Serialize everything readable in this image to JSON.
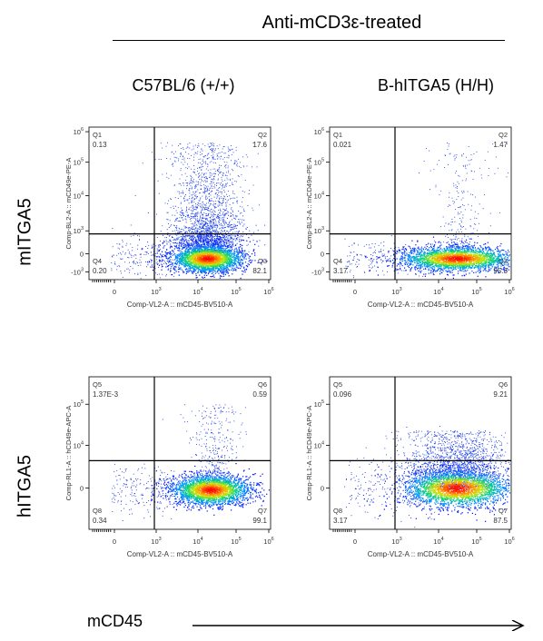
{
  "header": {
    "title": "Anti-mCD3ε-treated"
  },
  "columns": [
    "C57BL/6 (+/+)",
    "B-hITGA5 (H/H)"
  ],
  "rows": [
    "mITGA5",
    "hITGA5"
  ],
  "axis_title_bottom": "mCD45",
  "chart_data": [
    {
      "type": "scatter",
      "title": "",
      "xlabel": "Comp-VL2-A :: mCD45-BV510-A",
      "ylabel": "Comp-BL2-A :: mCD49e-PE-A",
      "xticks": [
        "0",
        "10³",
        "10⁴",
        "10⁵",
        "10⁶"
      ],
      "yticks": [
        "10⁶",
        "10⁵",
        "10⁴",
        "10³",
        "0",
        "-10³"
      ],
      "quadrants": [
        {
          "name": "Q1",
          "value": "0.13"
        },
        {
          "name": "Q2",
          "value": "17.6"
        },
        {
          "name": "Q3",
          "value": "82.1"
        },
        {
          "name": "Q4",
          "value": "0.20"
        }
      ]
    },
    {
      "type": "scatter",
      "title": "",
      "xlabel": "Comp-VL2-A :: mCD45-BV510-A",
      "ylabel": "Comp-BL2-A :: mCD49e-PE-A",
      "xticks": [
        "0",
        "10³",
        "10⁴",
        "10⁵",
        "10⁶"
      ],
      "yticks": [
        "10⁶",
        "10⁵",
        "10⁴",
        "10³",
        "0",
        "-10³"
      ],
      "quadrants": [
        {
          "name": "Q1",
          "value": "0.021"
        },
        {
          "name": "Q2",
          "value": "1.47"
        },
        {
          "name": "Q3",
          "value": "95.3"
        },
        {
          "name": "Q4",
          "value": "3.17"
        }
      ]
    },
    {
      "type": "scatter",
      "title": "",
      "xlabel": "Comp-VL2-A :: mCD45-BV510-A",
      "ylabel": "Comp-RL1-A :: hCD49e-APC-A",
      "xticks": [
        "0",
        "10³",
        "10⁴",
        "10⁵",
        "10⁶"
      ],
      "yticks": [
        "10⁵",
        "10⁴",
        "0"
      ],
      "quadrants": [
        {
          "name": "Q5",
          "value": "1.37E-3"
        },
        {
          "name": "Q6",
          "value": "0.59"
        },
        {
          "name": "Q7",
          "value": "99.1"
        },
        {
          "name": "Q8",
          "value": "0.34"
        }
      ]
    },
    {
      "type": "scatter",
      "title": "",
      "xlabel": "Comp-VL2-A :: mCD45-BV510-A",
      "ylabel": "Comp-RL1-A :: hCD49e-APC-A",
      "xticks": [
        "0",
        "10³",
        "10⁴",
        "10⁵",
        "10⁶"
      ],
      "yticks": [
        "10⁵",
        "10⁴",
        "0"
      ],
      "quadrants": [
        {
          "name": "Q5",
          "value": "0.096"
        },
        {
          "name": "Q6",
          "value": "9.21"
        },
        {
          "name": "Q7",
          "value": "87.5"
        },
        {
          "name": "Q8",
          "value": "3.17"
        }
      ]
    }
  ]
}
